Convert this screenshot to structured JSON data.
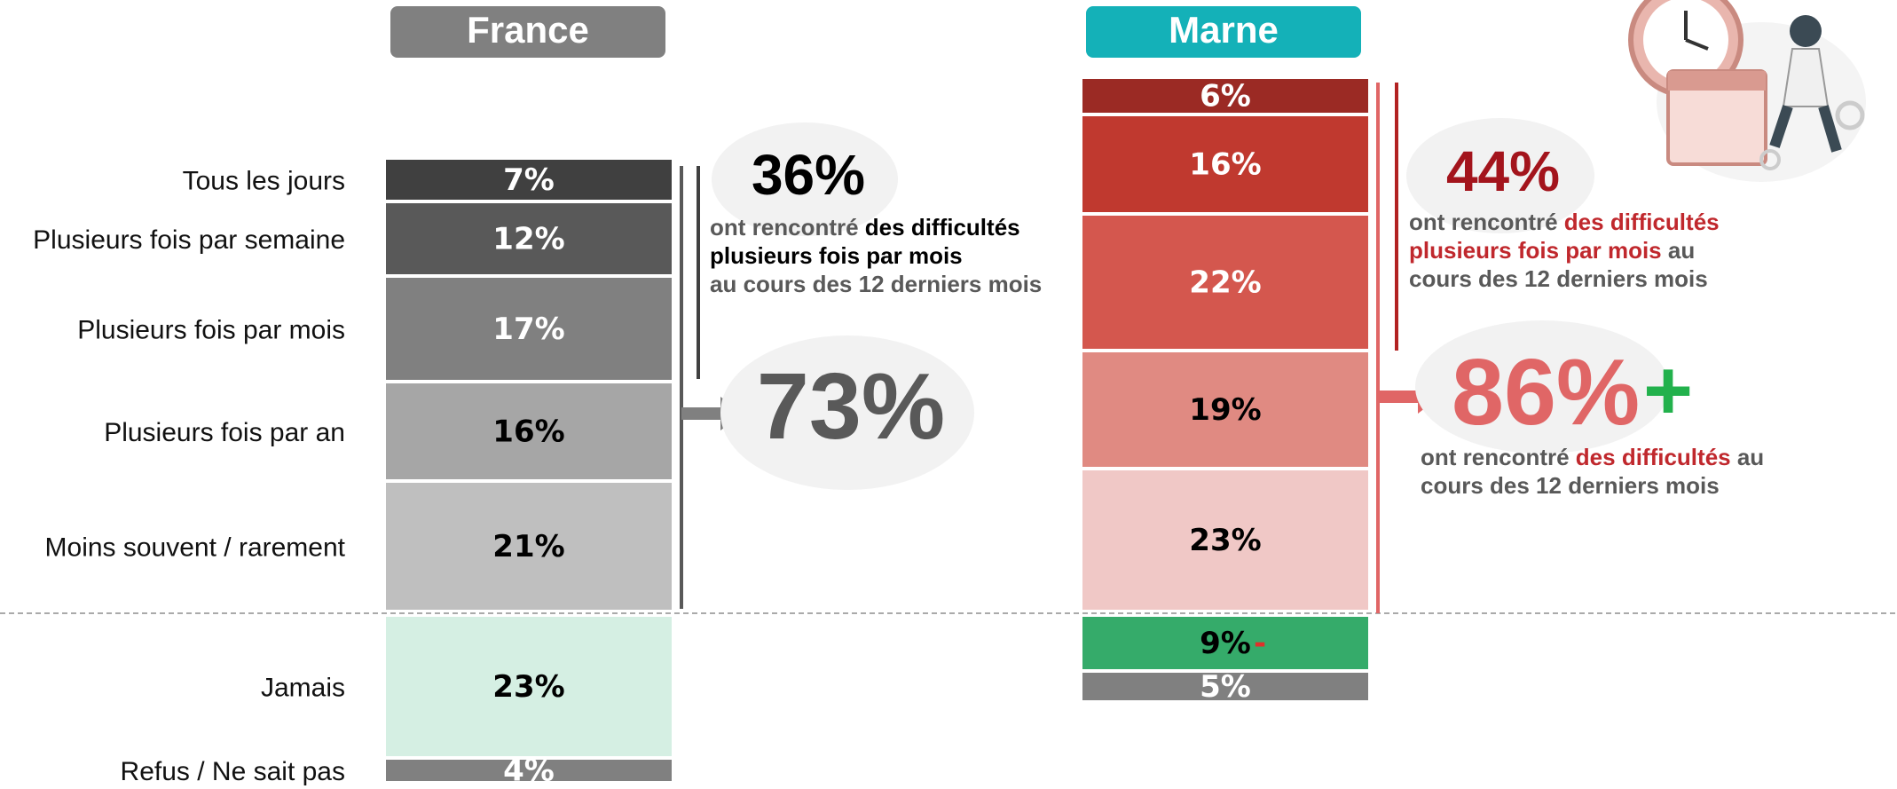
{
  "chart_data": [
    {
      "type": "stacked-bar",
      "title": "France",
      "categories": [
        "Tous les jours",
        "Plusieurs fois par semaine",
        "Plusieurs fois par mois",
        "Plusieurs fois par an",
        "Moins souvent / rarement",
        "Jamais",
        "Refus / Ne sait pas"
      ],
      "values": [
        7,
        12,
        17,
        16,
        21,
        23,
        4
      ],
      "value_labels": [
        "7%",
        "12%",
        "17%",
        "16%",
        "21%",
        "23%",
        "4%"
      ],
      "colors": [
        "#404040",
        "#595959",
        "#808080",
        "#a6a6a6",
        "#bfbfbf",
        "#d5efe3",
        "#808080"
      ],
      "label_colors": [
        "#ffffff",
        "#ffffff",
        "#ffffff",
        "#000000",
        "#000000",
        "#000000",
        "#ffffff"
      ],
      "header_color": "#808080",
      "annotations": {
        "first": {
          "value": "36%",
          "lines": [
            [
              "ont rencontré ",
              "des difficultés"
            ],
            [
              "plusieurs fois par mois"
            ],
            [
              "au cours des 12 derniers mois"
            ]
          ]
        },
        "second": {
          "value": "73%"
        }
      }
    },
    {
      "type": "stacked-bar",
      "title": "Marne",
      "values": [
        6,
        16,
        22,
        19,
        23,
        9,
        5
      ],
      "value_labels": [
        "6%",
        "16%",
        "22%",
        "19%",
        "23%",
        "9%",
        "5%"
      ],
      "colors": [
        "#9b2a24",
        "#c0392f",
        "#d4574e",
        "#e08a82",
        "#f0c8c6",
        "#35ab6a",
        "#808080"
      ],
      "label_colors": [
        "#ffffff",
        "#ffffff",
        "#ffffff",
        "#000000",
        "#000000",
        "#000000",
        "#ffffff"
      ],
      "header_color": "#14b1b8",
      "minus_sign": "-",
      "annotations": {
        "first": {
          "value": "44%",
          "lines": [
            [
              "ont rencontré ",
              "des difficultés"
            ],
            [
              "plusieurs fois par mois",
              " au"
            ],
            [
              "cours des 12 derniers mois"
            ]
          ]
        },
        "second": {
          "value": "86%",
          "sign": "+",
          "lines": [
            [
              "ont rencontré ",
              "des difficultés",
              " au"
            ],
            [
              "cours des 12 derniers mois"
            ]
          ]
        }
      }
    }
  ]
}
